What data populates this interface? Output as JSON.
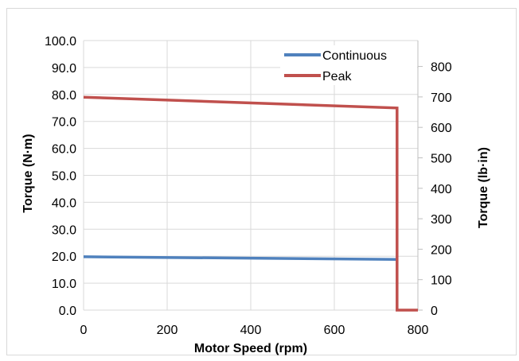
{
  "chart_data": {
    "type": "line",
    "title": "",
    "xlabel": "Motor Speed (rpm)",
    "ylabel": "Torque (N·m)",
    "y2label": "Torque (lb·in)",
    "xlim": [
      0,
      800
    ],
    "ylim": [
      0,
      100
    ],
    "y2lim": [
      0,
      885.07
    ],
    "x_ticks": [
      "0",
      "200",
      "400",
      "600",
      "800"
    ],
    "y_ticks": [
      "0.0",
      "10.0",
      "20.0",
      "30.0",
      "40.0",
      "50.0",
      "60.0",
      "70.0",
      "80.0",
      "90.0",
      "100.0"
    ],
    "y2_ticks": [
      "0",
      "100",
      "200",
      "300",
      "400",
      "500",
      "600",
      "700",
      "800"
    ],
    "grid": true,
    "legend_position": "top-right",
    "series": [
      {
        "name": "Continuous",
        "color": "#4F81BD",
        "x": [
          0,
          750
        ],
        "y": [
          19.8,
          18.8
        ]
      },
      {
        "name": "Peak",
        "color": "#C0504D",
        "x": [
          0,
          750,
          750,
          800
        ],
        "y": [
          79.0,
          75.0,
          0,
          0
        ]
      }
    ]
  }
}
